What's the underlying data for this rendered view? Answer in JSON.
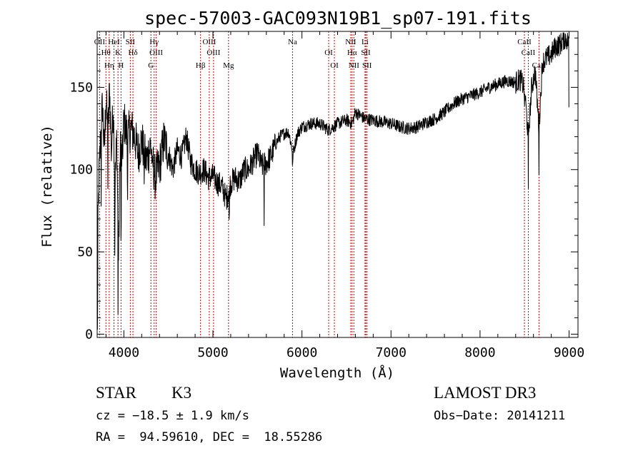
{
  "chart_data": {
    "type": "line",
    "title": "spec-57003-GAC093N19B1_sp07-191.fits",
    "xlabel": "Wavelength (Å)",
    "ylabel": "Flux (relative)",
    "xlim": [
      3700,
      9100
    ],
    "ylim": [
      -2,
      184
    ],
    "xticks": [
      4000,
      5000,
      6000,
      7000,
      8000,
      9000
    ],
    "xtick_labels": [
      "4000",
      "5000",
      "6000",
      "7000",
      "8000",
      "9000"
    ],
    "yticks": [
      0,
      50,
      100,
      150
    ],
    "ytick_labels": [
      "0",
      "50",
      "100",
      "150"
    ],
    "grid": false,
    "series": [
      {
        "name": "flux",
        "x": [
          3700,
          3720,
          3740,
          3760,
          3780,
          3800,
          3820,
          3840,
          3860,
          3880,
          3900,
          3920,
          3940,
          3960,
          3980,
          4000,
          4040,
          4080,
          4120,
          4160,
          4200,
          4250,
          4300,
          4350,
          4400,
          4450,
          4500,
          4550,
          4600,
          4650,
          4700,
          4750,
          4800,
          4850,
          4900,
          4950,
          5000,
          5050,
          5100,
          5150,
          5200,
          5250,
          5300,
          5350,
          5400,
          5450,
          5500,
          5550,
          5600,
          5650,
          5700,
          5750,
          5800,
          5850,
          5900,
          5950,
          6000,
          6100,
          6200,
          6300,
          6400,
          6500,
          6563,
          6600,
          6700,
          6800,
          6900,
          7000,
          7100,
          7200,
          7300,
          7400,
          7500,
          7600,
          7700,
          7800,
          7900,
          8000,
          8100,
          8200,
          8300,
          8400,
          8450,
          8498,
          8542,
          8580,
          8620,
          8662,
          8700,
          8750,
          8800,
          8850,
          8900,
          8950,
          9000
        ],
        "values": [
          40,
          95,
          120,
          140,
          110,
          145,
          120,
          150,
          110,
          140,
          90,
          120,
          45,
          120,
          105,
          130,
          120,
          125,
          120,
          110,
          118,
          105,
          115,
          95,
          102,
          118,
          110,
          100,
          112,
          108,
          120,
          105,
          100,
          98,
          100,
          95,
          96,
          92,
          90,
          82,
          92,
          95,
          93,
          100,
          100,
          105,
          110,
          102,
          104,
          108,
          115,
          120,
          122,
          123,
          110,
          122,
          126,
          128,
          128,
          124,
          128,
          130,
          128,
          135,
          131,
          130,
          129,
          128,
          126,
          125,
          126,
          129,
          131,
          135,
          140,
          143,
          145,
          147,
          150,
          152,
          154,
          153,
          155,
          150,
          120,
          150,
          160,
          125,
          165,
          168,
          170,
          175,
          176,
          180,
          178
        ]
      }
    ],
    "lines": [
      {
        "name": "OII",
        "wavelength": 3727
      },
      {
        "name": "Hθ",
        "wavelength": 3798
      },
      {
        "name": "Hη",
        "wavelength": 3835
      },
      {
        "name": "HeI",
        "wavelength": 3889
      },
      {
        "name": "K",
        "wavelength": 3934
      },
      {
        "name": "H",
        "wavelength": 3968
      },
      {
        "name": "SII",
        "wavelength": 4072
      },
      {
        "name": "Hδ",
        "wavelength": 4102
      },
      {
        "name": "G",
        "wavelength": 4304
      },
      {
        "name": "Hγ",
        "wavelength": 4340
      },
      {
        "name": "OIII",
        "wavelength": 4363
      },
      {
        "name": "Hβ",
        "wavelength": 4861
      },
      {
        "name": "OIII",
        "wavelength": 4959
      },
      {
        "name": "OIII",
        "wavelength": 5007
      },
      {
        "name": "Mg",
        "wavelength": 5175
      },
      {
        "name": "Na",
        "wavelength": 5894
      },
      {
        "name": "OI",
        "wavelength": 6300
      },
      {
        "name": "OI",
        "wavelength": 6364
      },
      {
        "name": "NII",
        "wavelength": 6548
      },
      {
        "name": "Hα",
        "wavelength": 6563
      },
      {
        "name": "NII",
        "wavelength": 6583
      },
      {
        "name": "Li",
        "wavelength": 6708
      },
      {
        "name": "SII",
        "wavelength": 6717
      },
      {
        "name": "SII",
        "wavelength": 6731
      },
      {
        "name": "CaII",
        "wavelength": 8498
      },
      {
        "name": "CaII",
        "wavelength": 8542
      },
      {
        "name": "CaII",
        "wavelength": 8662
      }
    ]
  },
  "info": {
    "object_class": "STAR",
    "subclass": "K3",
    "survey": "LAMOST DR3",
    "redshift": "cz = −18.5 ± 1.9 km/s",
    "obs_date": "Obs−Date: 20141211",
    "coords": "RA =  94.59610, DEC =  18.55286"
  },
  "colors": {
    "line_marker": "#cc0000",
    "spectrum": "#000000"
  }
}
